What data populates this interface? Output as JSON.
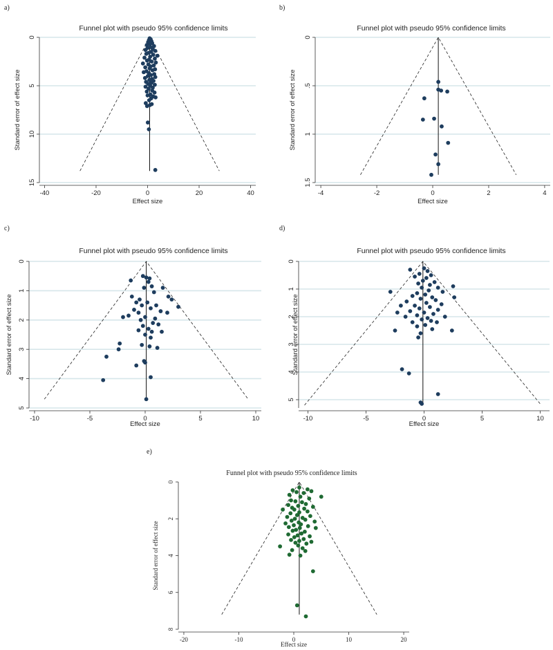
{
  "chart_data": [
    {
      "panel_label": "a)",
      "type": "scatter",
      "title": "Funnel plot with pseudo 95% confidence limits",
      "xlabel": "Effect size",
      "ylabel": "Standard error of effect size",
      "xlim": [
        -42,
        42
      ],
      "ylim": [
        0,
        15
      ],
      "y_inverted": true,
      "xticks": [
        -40,
        -20,
        0,
        20,
        40
      ],
      "yticks": [
        0,
        5,
        10,
        15
      ],
      "grid": true,
      "point_color": "#1e3d5e",
      "pooled_effect": 0.8,
      "funnel_max_se": 13.8,
      "points": [
        {
          "x": 0.8,
          "y": 0.1
        },
        {
          "x": 1.2,
          "y": 0.2
        },
        {
          "x": 0.5,
          "y": 0.3
        },
        {
          "x": 1.5,
          "y": 0.4
        },
        {
          "x": 0.2,
          "y": 0.5
        },
        {
          "x": 1.8,
          "y": 0.6
        },
        {
          "x": 0.9,
          "y": 0.7
        },
        {
          "x": -0.3,
          "y": 0.8
        },
        {
          "x": 2.5,
          "y": 0.9
        },
        {
          "x": 1.1,
          "y": 1.0
        },
        {
          "x": 0.0,
          "y": 1.1
        },
        {
          "x": 2.0,
          "y": 1.2
        },
        {
          "x": -0.8,
          "y": 1.3
        },
        {
          "x": 3.0,
          "y": 1.4
        },
        {
          "x": 1.4,
          "y": 1.5
        },
        {
          "x": 0.4,
          "y": 1.6
        },
        {
          "x": -0.5,
          "y": 1.7
        },
        {
          "x": 2.2,
          "y": 1.8
        },
        {
          "x": 3.8,
          "y": 1.9
        },
        {
          "x": 1.0,
          "y": 2.0
        },
        {
          "x": -1.2,
          "y": 2.1
        },
        {
          "x": 2.8,
          "y": 2.2
        },
        {
          "x": 0.6,
          "y": 2.3
        },
        {
          "x": -0.2,
          "y": 2.4
        },
        {
          "x": 1.6,
          "y": 2.5
        },
        {
          "x": 3.2,
          "y": 2.6
        },
        {
          "x": -1.8,
          "y": 2.7
        },
        {
          "x": 0.3,
          "y": 2.8
        },
        {
          "x": 2.4,
          "y": 2.9
        },
        {
          "x": 1.2,
          "y": 3.0
        },
        {
          "x": -0.9,
          "y": 3.1
        },
        {
          "x": 0.8,
          "y": 3.2
        },
        {
          "x": 2.9,
          "y": 3.3
        },
        {
          "x": 1.9,
          "y": 3.4
        },
        {
          "x": -0.4,
          "y": 3.5
        },
        {
          "x": -1.5,
          "y": 3.6
        },
        {
          "x": 0.5,
          "y": 3.7
        },
        {
          "x": 2.6,
          "y": 3.8
        },
        {
          "x": 1.3,
          "y": 3.9
        },
        {
          "x": 0.1,
          "y": 4.0
        },
        {
          "x": 3.0,
          "y": 4.1
        },
        {
          "x": -1.0,
          "y": 4.2
        },
        {
          "x": 1.7,
          "y": 4.3
        },
        {
          "x": 0.7,
          "y": 4.4
        },
        {
          "x": 2.3,
          "y": 4.5
        },
        {
          "x": -0.6,
          "y": 4.6
        },
        {
          "x": 1.5,
          "y": 4.7
        },
        {
          "x": 0.2,
          "y": 4.8
        },
        {
          "x": 2.8,
          "y": 4.9
        },
        {
          "x": 1.0,
          "y": 5.0
        },
        {
          "x": -0.8,
          "y": 5.1
        },
        {
          "x": 2.0,
          "y": 5.2
        },
        {
          "x": 0.4,
          "y": 5.3
        },
        {
          "x": 1.8,
          "y": 5.5
        },
        {
          "x": -0.3,
          "y": 5.6
        },
        {
          "x": 2.7,
          "y": 5.7
        },
        {
          "x": 1.1,
          "y": 5.9
        },
        {
          "x": 0.0,
          "y": 6.0
        },
        {
          "x": 2.2,
          "y": 6.1
        },
        {
          "x": 1.4,
          "y": 6.3
        },
        {
          "x": 3.1,
          "y": 6.2
        },
        {
          "x": 0.6,
          "y": 6.5
        },
        {
          "x": -0.7,
          "y": 6.8
        },
        {
          "x": 1.6,
          "y": 6.9
        },
        {
          "x": -0.2,
          "y": 7.1
        },
        {
          "x": 0.9,
          "y": 7.0
        },
        {
          "x": 0.1,
          "y": 8.8
        },
        {
          "x": 0.5,
          "y": 9.5
        },
        {
          "x": 3.0,
          "y": 13.7
        }
      ]
    },
    {
      "panel_label": "b)",
      "type": "scatter",
      "title": "Funnel plot with pseudo 95% confidence limits",
      "xlabel": "Effect size",
      "ylabel": "Standard error of effect size",
      "xlim": [
        -4.2,
        4.2
      ],
      "ylim": [
        0,
        1.5
      ],
      "y_inverted": true,
      "xticks": [
        -4,
        -2,
        0,
        2,
        4
      ],
      "ytick_values": [
        0,
        0.5,
        1,
        1.5
      ],
      "ytick_labels": [
        "0",
        ".5",
        "1",
        "1.5"
      ],
      "grid": true,
      "point_color": "#1e3d5e",
      "pooled_effect": 0.2,
      "funnel_max_se": 1.42,
      "points": [
        {
          "x": 0.2,
          "y": 0.46
        },
        {
          "x": 0.2,
          "y": 0.54
        },
        {
          "x": 0.3,
          "y": 0.55
        },
        {
          "x": 0.52,
          "y": 0.56
        },
        {
          "x": -0.3,
          "y": 0.63
        },
        {
          "x": -0.35,
          "y": 0.85
        },
        {
          "x": 0.05,
          "y": 0.84
        },
        {
          "x": 0.32,
          "y": 0.92
        },
        {
          "x": 0.55,
          "y": 1.09
        },
        {
          "x": 0.1,
          "y": 1.21
        },
        {
          "x": 0.2,
          "y": 1.31
        },
        {
          "x": -0.05,
          "y": 1.42
        }
      ]
    },
    {
      "panel_label": "c)",
      "type": "scatter",
      "title": "Funnel plot with pseudo 95% confidence limits",
      "xlabel": "Effect size",
      "ylabel": "Standard error of effect size",
      "xlim": [
        -10.5,
        10.5
      ],
      "ylim": [
        0,
        5
      ],
      "y_inverted": true,
      "xticks": [
        -10,
        -5,
        0,
        5,
        10
      ],
      "yticks": [
        0,
        1,
        2,
        3,
        4,
        5
      ],
      "grid": true,
      "point_color": "#1e3d5e",
      "pooled_effect": 0.1,
      "funnel_max_se": 4.7,
      "points": [
        {
          "x": -0.2,
          "y": 0.5
        },
        {
          "x": 0.1,
          "y": 0.55
        },
        {
          "x": 0.4,
          "y": 0.58
        },
        {
          "x": -1.3,
          "y": 0.65
        },
        {
          "x": 0.3,
          "y": 0.7
        },
        {
          "x": 0.6,
          "y": 0.85
        },
        {
          "x": -0.1,
          "y": 0.9
        },
        {
          "x": 1.6,
          "y": 0.9
        },
        {
          "x": 0.8,
          "y": 1.05
        },
        {
          "x": 2.1,
          "y": 1.2
        },
        {
          "x": -1.2,
          "y": 1.2
        },
        {
          "x": -0.5,
          "y": 1.3
        },
        {
          "x": 2.4,
          "y": 1.3
        },
        {
          "x": 0.2,
          "y": 1.4
        },
        {
          "x": -0.8,
          "y": 1.4
        },
        {
          "x": 1.0,
          "y": 1.5
        },
        {
          "x": -0.3,
          "y": 1.5
        },
        {
          "x": 3.0,
          "y": 1.55
        },
        {
          "x": 0.5,
          "y": 1.6
        },
        {
          "x": -1.0,
          "y": 1.65
        },
        {
          "x": 1.4,
          "y": 1.7
        },
        {
          "x": -0.6,
          "y": 1.75
        },
        {
          "x": 2.0,
          "y": 1.75
        },
        {
          "x": -1.5,
          "y": 1.85
        },
        {
          "x": 0.0,
          "y": 1.9
        },
        {
          "x": -2.0,
          "y": 1.9
        },
        {
          "x": 0.9,
          "y": 1.95
        },
        {
          "x": -0.4,
          "y": 2.0
        },
        {
          "x": 0.7,
          "y": 2.1
        },
        {
          "x": 1.2,
          "y": 2.15
        },
        {
          "x": -0.2,
          "y": 2.2
        },
        {
          "x": 0.3,
          "y": 2.3
        },
        {
          "x": -0.6,
          "y": 2.35
        },
        {
          "x": 0.6,
          "y": 2.4
        },
        {
          "x": 1.5,
          "y": 2.4
        },
        {
          "x": 0.0,
          "y": 2.5
        },
        {
          "x": 0.5,
          "y": 2.6
        },
        {
          "x": -2.3,
          "y": 2.8
        },
        {
          "x": -0.3,
          "y": 2.85
        },
        {
          "x": 0.4,
          "y": 2.9
        },
        {
          "x": 1.1,
          "y": 2.95
        },
        {
          "x": -2.4,
          "y": 3.0
        },
        {
          "x": -3.5,
          "y": 3.25
        },
        {
          "x": -0.1,
          "y": 3.4
        },
        {
          "x": 0.0,
          "y": 3.45
        },
        {
          "x": -0.8,
          "y": 3.55
        },
        {
          "x": 0.5,
          "y": 3.95
        },
        {
          "x": -3.8,
          "y": 4.05
        },
        {
          "x": 0.1,
          "y": 4.7
        }
      ]
    },
    {
      "panel_label": "d)",
      "type": "scatter",
      "title": "Funnel plot with pseudo 95% confidence limits",
      "xlabel": "Effect size",
      "ylabel": "Standard error of effect size",
      "xlim": [
        -10.8,
        10.8
      ],
      "ylim": [
        0,
        5.3
      ],
      "y_inverted": true,
      "xticks": [
        -10,
        -5,
        0,
        5,
        10
      ],
      "yticks": [
        0,
        1,
        2,
        3,
        4,
        5
      ],
      "grid": true,
      "point_color": "#1e3d5e",
      "pooled_effect": -0.1,
      "funnel_max_se": 5.2,
      "points": [
        {
          "x": -1.2,
          "y": 0.3
        },
        {
          "x": 0.0,
          "y": 0.25
        },
        {
          "x": 0.3,
          "y": 0.35
        },
        {
          "x": -0.4,
          "y": 0.45
        },
        {
          "x": 0.6,
          "y": 0.5
        },
        {
          "x": -0.8,
          "y": 0.55
        },
        {
          "x": 0.2,
          "y": 0.6
        },
        {
          "x": -0.1,
          "y": 0.7
        },
        {
          "x": 0.9,
          "y": 0.75
        },
        {
          "x": -0.5,
          "y": 0.8
        },
        {
          "x": 0.5,
          "y": 0.85
        },
        {
          "x": 2.5,
          "y": 0.9
        },
        {
          "x": -0.2,
          "y": 0.95
        },
        {
          "x": 1.2,
          "y": 0.95
        },
        {
          "x": -2.9,
          "y": 1.1
        },
        {
          "x": 0.4,
          "y": 1.05
        },
        {
          "x": 1.6,
          "y": 1.1
        },
        {
          "x": -0.6,
          "y": 1.15
        },
        {
          "x": 0.1,
          "y": 1.2
        },
        {
          "x": -1.0,
          "y": 1.25
        },
        {
          "x": 2.6,
          "y": 1.3
        },
        {
          "x": 0.7,
          "y": 1.3
        },
        {
          "x": -0.3,
          "y": 1.35
        },
        {
          "x": 1.0,
          "y": 1.4
        },
        {
          "x": -1.5,
          "y": 1.45
        },
        {
          "x": 0.2,
          "y": 1.5
        },
        {
          "x": 1.5,
          "y": 1.55
        },
        {
          "x": -0.8,
          "y": 1.6
        },
        {
          "x": -2.0,
          "y": 1.6
        },
        {
          "x": 0.5,
          "y": 1.65
        },
        {
          "x": -0.4,
          "y": 1.7
        },
        {
          "x": 1.2,
          "y": 1.75
        },
        {
          "x": -1.2,
          "y": 1.8
        },
        {
          "x": 0.0,
          "y": 1.85
        },
        {
          "x": -2.3,
          "y": 1.85
        },
        {
          "x": 0.8,
          "y": 1.9
        },
        {
          "x": -0.6,
          "y": 1.95
        },
        {
          "x": 1.8,
          "y": 2.0
        },
        {
          "x": -1.6,
          "y": 2.0
        },
        {
          "x": 0.3,
          "y": 2.05
        },
        {
          "x": -0.2,
          "y": 2.1
        },
        {
          "x": 0.6,
          "y": 2.15
        },
        {
          "x": 1.1,
          "y": 2.2
        },
        {
          "x": -1.0,
          "y": 2.2
        },
        {
          "x": 0.1,
          "y": 2.3
        },
        {
          "x": -0.6,
          "y": 2.35
        },
        {
          "x": 0.7,
          "y": 2.45
        },
        {
          "x": -2.5,
          "y": 2.5
        },
        {
          "x": 2.4,
          "y": 2.5
        },
        {
          "x": -0.3,
          "y": 2.6
        },
        {
          "x": -0.5,
          "y": 2.75
        },
        {
          "x": -1.9,
          "y": 3.9
        },
        {
          "x": -1.3,
          "y": 4.05
        },
        {
          "x": 1.2,
          "y": 4.8
        },
        {
          "x": -0.3,
          "y": 5.1
        },
        {
          "x": -0.2,
          "y": 5.15
        }
      ]
    },
    {
      "panel_label": "e)",
      "type": "scatter",
      "title": "Funnel plot with pseudo 95% confidence limits",
      "xlabel": "Effect size",
      "ylabel": "Standard error of effect size",
      "xlim": [
        -21,
        21
      ],
      "ylim": [
        0,
        8
      ],
      "y_inverted": true,
      "xticks": [
        -20,
        -10,
        0,
        10,
        20
      ],
      "yticks": [
        0,
        2,
        4,
        6,
        8
      ],
      "grid": false,
      "point_color": "#1f6a33",
      "pooled_effect": 1.0,
      "funnel_max_se": 7.2,
      "points": [
        {
          "x": 1.0,
          "y": 0.3
        },
        {
          "x": 2.5,
          "y": 0.4
        },
        {
          "x": -0.2,
          "y": 0.45
        },
        {
          "x": 3.2,
          "y": 0.5
        },
        {
          "x": 0.5,
          "y": 0.55
        },
        {
          "x": 1.8,
          "y": 0.6
        },
        {
          "x": -0.8,
          "y": 0.7
        },
        {
          "x": 5.0,
          "y": 0.8
        },
        {
          "x": 1.2,
          "y": 0.8
        },
        {
          "x": 2.8,
          "y": 0.9
        },
        {
          "x": -0.5,
          "y": 1.0
        },
        {
          "x": 0.3,
          "y": 1.05
        },
        {
          "x": 1.5,
          "y": 1.1
        },
        {
          "x": 2.2,
          "y": 1.2
        },
        {
          "x": -1.0,
          "y": 1.25
        },
        {
          "x": 0.8,
          "y": 1.3
        },
        {
          "x": 3.5,
          "y": 1.35
        },
        {
          "x": -0.3,
          "y": 1.4
        },
        {
          "x": 1.9,
          "y": 1.45
        },
        {
          "x": 0.1,
          "y": 1.5
        },
        {
          "x": -2.0,
          "y": 1.5
        },
        {
          "x": 2.5,
          "y": 1.6
        },
        {
          "x": 1.0,
          "y": 1.65
        },
        {
          "x": -0.6,
          "y": 1.7
        },
        {
          "x": 0.6,
          "y": 1.8
        },
        {
          "x": 3.0,
          "y": 1.85
        },
        {
          "x": -1.2,
          "y": 1.9
        },
        {
          "x": 1.6,
          "y": 1.95
        },
        {
          "x": 0.2,
          "y": 2.0
        },
        {
          "x": 2.1,
          "y": 2.05
        },
        {
          "x": -0.4,
          "y": 2.1
        },
        {
          "x": 3.8,
          "y": 2.15
        },
        {
          "x": 0.9,
          "y": 2.2
        },
        {
          "x": -1.5,
          "y": 2.25
        },
        {
          "x": 1.3,
          "y": 2.3
        },
        {
          "x": 0.0,
          "y": 2.35
        },
        {
          "x": 2.6,
          "y": 2.4
        },
        {
          "x": -0.9,
          "y": 2.45
        },
        {
          "x": 1.1,
          "y": 2.5
        },
        {
          "x": 4.0,
          "y": 2.5
        },
        {
          "x": 0.4,
          "y": 2.6
        },
        {
          "x": -0.2,
          "y": 2.65
        },
        {
          "x": 2.0,
          "y": 2.7
        },
        {
          "x": 1.4,
          "y": 2.8
        },
        {
          "x": -1.0,
          "y": 2.85
        },
        {
          "x": 0.7,
          "y": 2.9
        },
        {
          "x": 2.9,
          "y": 2.95
        },
        {
          "x": 0.1,
          "y": 3.0
        },
        {
          "x": 1.8,
          "y": 3.1
        },
        {
          "x": -0.5,
          "y": 3.15
        },
        {
          "x": 1.0,
          "y": 3.2
        },
        {
          "x": 3.2,
          "y": 3.25
        },
        {
          "x": 0.3,
          "y": 3.3
        },
        {
          "x": 2.3,
          "y": 3.35
        },
        {
          "x": -2.5,
          "y": 3.5
        },
        {
          "x": 0.8,
          "y": 3.45
        },
        {
          "x": 1.6,
          "y": 3.6
        },
        {
          "x": -0.3,
          "y": 3.7
        },
        {
          "x": 2.1,
          "y": 3.75
        },
        {
          "x": -0.8,
          "y": 3.95
        },
        {
          "x": 1.2,
          "y": 4.0
        },
        {
          "x": 3.5,
          "y": 4.85
        },
        {
          "x": 0.6,
          "y": 6.7
        },
        {
          "x": 2.2,
          "y": 7.3
        }
      ]
    }
  ]
}
